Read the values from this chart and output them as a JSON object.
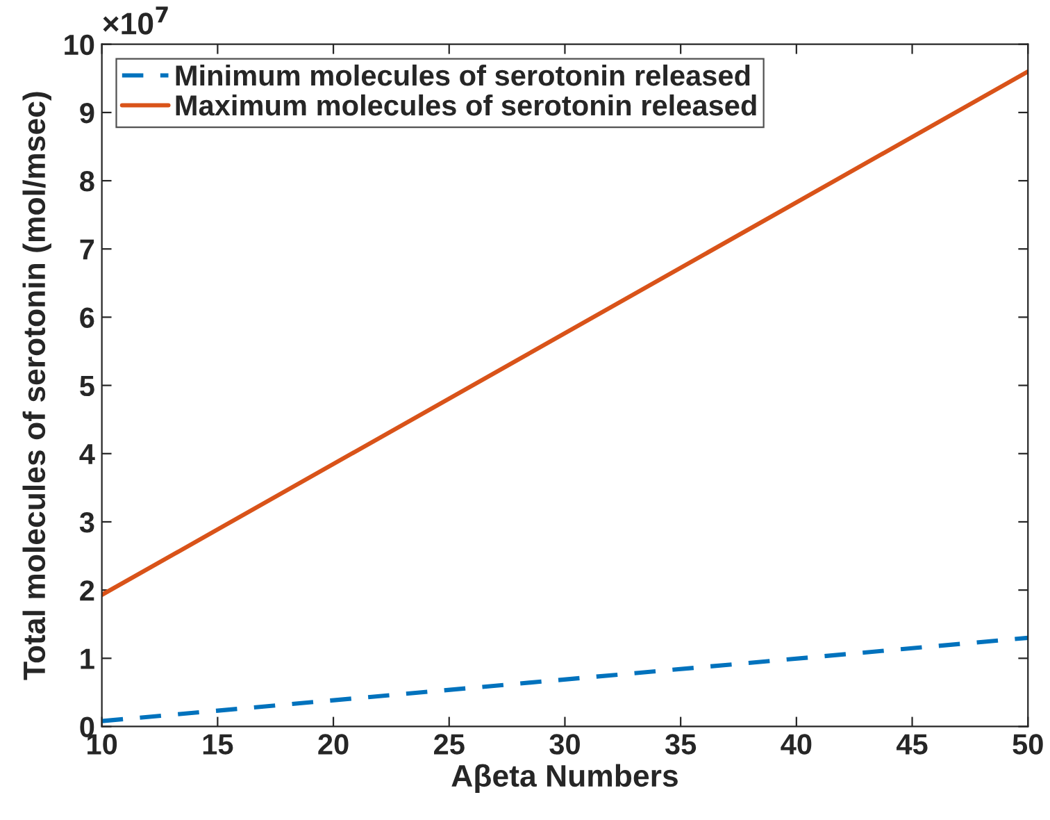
{
  "chart_data": {
    "type": "line",
    "xlabel": "Aβeta Numbers",
    "ylabel": "Total molecules of serotonin (mol/msec)",
    "x": [
      10,
      50
    ],
    "series": [
      {
        "name": "Minimum molecules of serotonin released",
        "color": "#0072bd",
        "line_style": "dashed",
        "values": [
          0.08,
          1.3
        ]
      },
      {
        "name": "Maximum molecules of serotonin released",
        "color": "#d95319",
        "line_style": "solid",
        "values": [
          1.93,
          9.6
        ]
      }
    ],
    "annotations": [
      "×10$^{7}$"
    ],
    "xlim": [
      10,
      50
    ],
    "xticks": [
      10,
      15,
      20,
      25,
      30,
      35,
      40,
      45,
      50
    ],
    "ylim": [
      0,
      10
    ],
    "yticks": [
      0,
      1,
      2,
      3,
      4,
      5,
      6,
      7,
      8,
      9,
      10
    ],
    "grid": false,
    "legend": "top left",
    "marker": "none"
  }
}
